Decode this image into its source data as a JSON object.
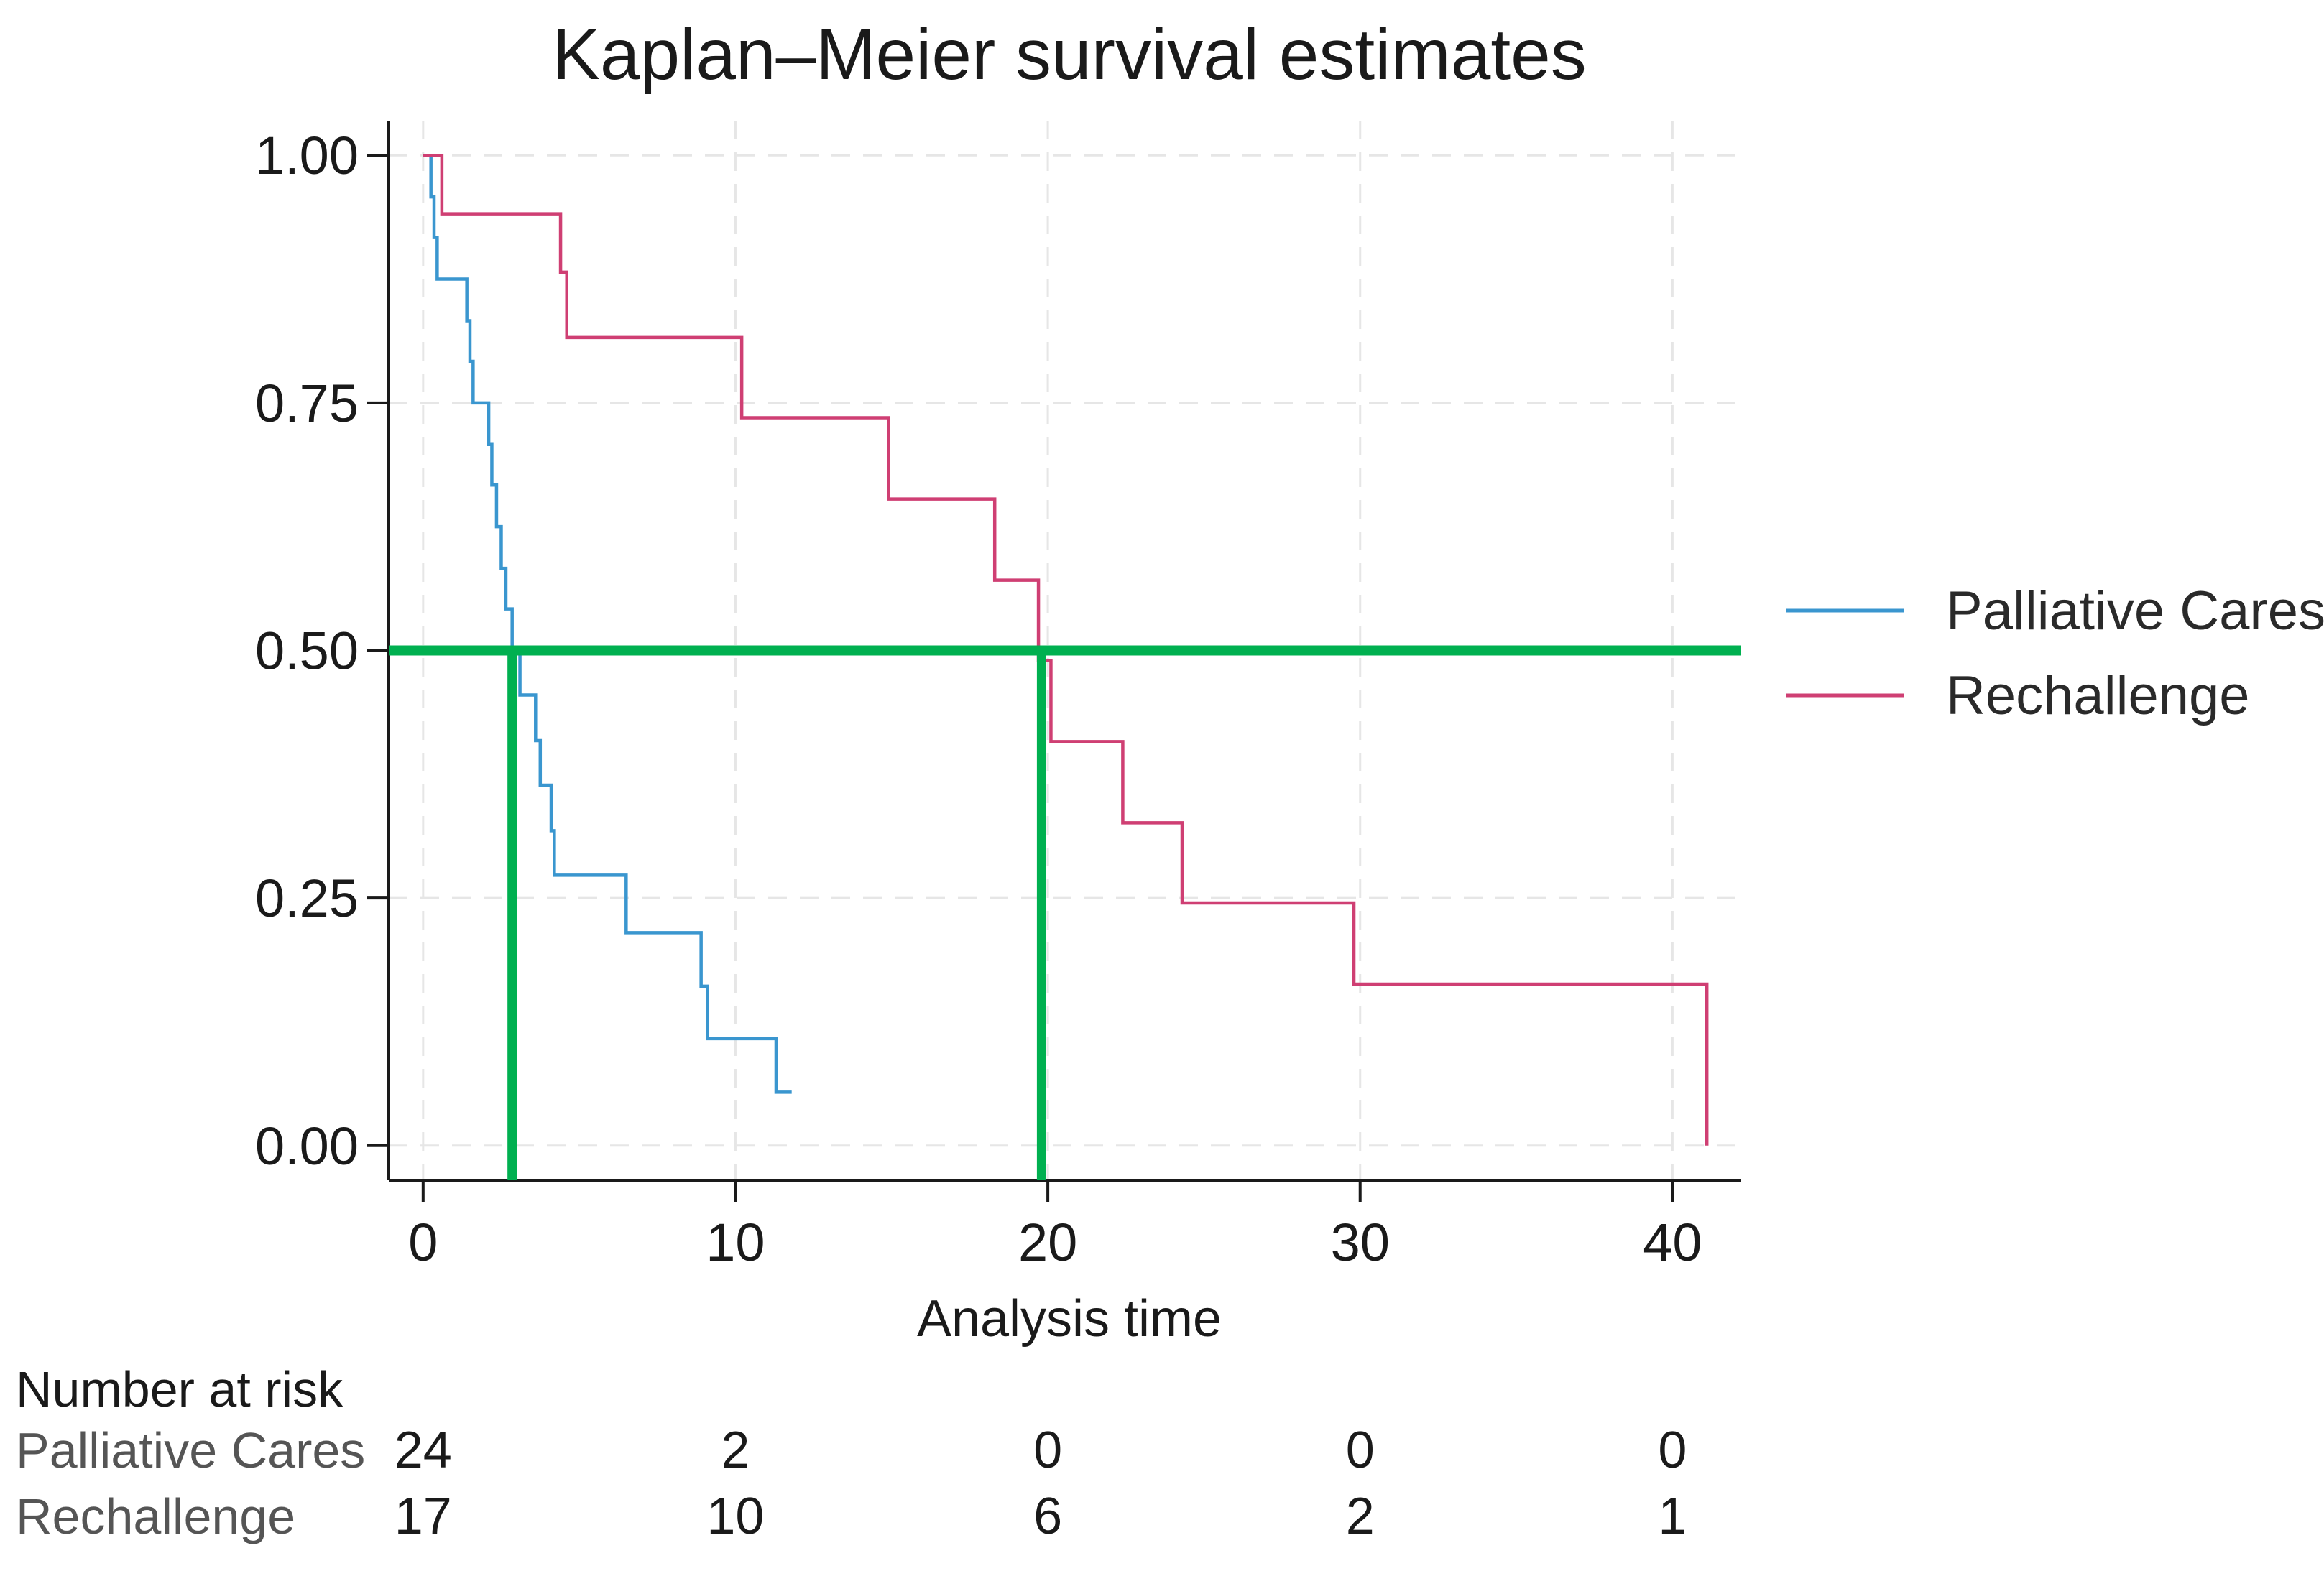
{
  "chart_data": {
    "type": "line",
    "title": "Kaplan–Meier survival estimates",
    "xlabel": "Analysis time",
    "ylabel": "",
    "xlim": [
      -1.1,
      42.2
    ],
    "ylim": [
      -0.035,
      1.035
    ],
    "x_ticks": [
      0,
      10,
      20,
      30,
      40
    ],
    "x_tick_labels": [
      "0",
      "10",
      "20",
      "30",
      "40"
    ],
    "y_ticks": [
      0,
      0.25,
      0.5,
      0.75,
      1.0
    ],
    "y_tick_labels": [
      "0.00",
      "0.25",
      "0.50",
      "0.75",
      "1.00"
    ],
    "grid": true,
    "step": true,
    "legend_position": "right",
    "series": [
      {
        "name": "Palliative Cares",
        "color": "#3a96cf",
        "x": [
          0,
          0.25,
          0.35,
          0.45,
          0.6,
          0.75,
          1.4,
          1.5,
          1.6,
          1.75,
          2.1,
          2.2,
          2.35,
          2.5,
          2.65,
          2.85,
          3.1,
          3.6,
          3.75,
          4.1,
          4.2,
          4.4,
          6.5,
          8.9,
          9.1,
          11.3,
          11.8
        ],
        "y": [
          1.0,
          0.958,
          0.917,
          0.875,
          0.875,
          0.875,
          0.833,
          0.792,
          0.75,
          0.75,
          0.708,
          0.667,
          0.625,
          0.583,
          0.542,
          0.5,
          0.455,
          0.409,
          0.364,
          0.318,
          0.273,
          0.273,
          0.215,
          0.161,
          0.108,
          0.054,
          0.054
        ]
      },
      {
        "name": "Rechallenge",
        "color": "#cf3f73",
        "x": [
          0,
          0.6,
          0.6,
          4.4,
          4.6,
          10.2,
          14.9,
          18.3,
          19.7,
          20.1,
          22.4,
          24.3,
          29.8,
          41.1,
          41.1
        ],
        "y": [
          1.0,
          1.0,
          0.941,
          0.882,
          0.816,
          0.735,
          0.653,
          0.571,
          0.49,
          0.408,
          0.326,
          0.245,
          0.163,
          0.163,
          0.0
        ]
      }
    ],
    "reference_lines": {
      "color": "#00b050",
      "horizontal_y": 0.5,
      "vertical_x": [
        2.85,
        19.8
      ]
    },
    "risk_table": {
      "title": "Number at risk",
      "times": [
        0,
        10,
        20,
        30,
        40
      ],
      "rows": [
        {
          "label": "Palliative Cares",
          "values": [
            "24",
            "2",
            "0",
            "0",
            "0"
          ]
        },
        {
          "label": "Rechallenge",
          "values": [
            "17",
            "10",
            "6",
            "2",
            "1"
          ]
        }
      ]
    }
  }
}
